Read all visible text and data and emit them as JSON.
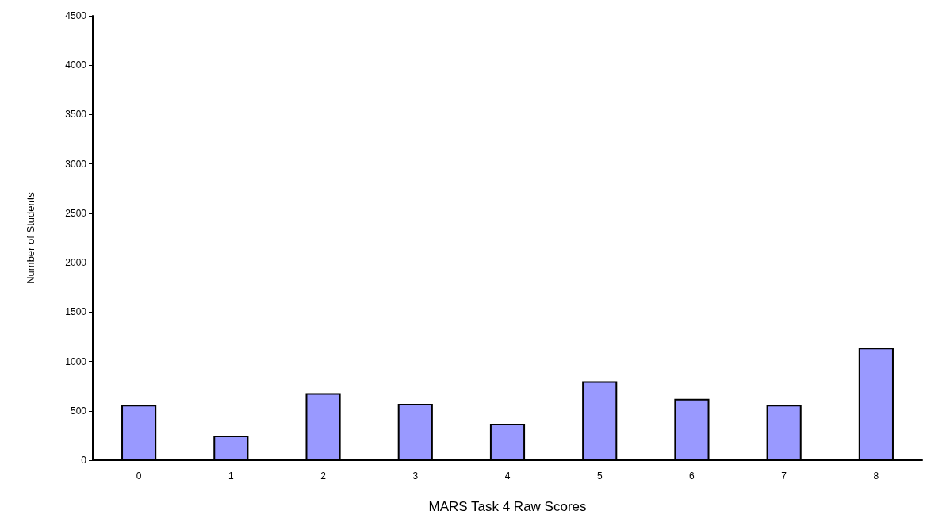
{
  "chart_data": {
    "type": "bar",
    "xlabel": "MARS Task 4 Raw Scores",
    "ylabel": "Number of Students",
    "categories": [
      "0",
      "1",
      "2",
      "3",
      "4",
      "5",
      "6",
      "7",
      "8"
    ],
    "values": [
      560,
      250,
      680,
      570,
      370,
      800,
      620,
      560,
      1140
    ],
    "color": "#9999ff",
    "ylim": [
      0,
      4500
    ],
    "yticks": [
      0,
      500,
      1000,
      1500,
      2000,
      2500,
      3000,
      3500,
      4000,
      4500
    ],
    "grid": false
  }
}
